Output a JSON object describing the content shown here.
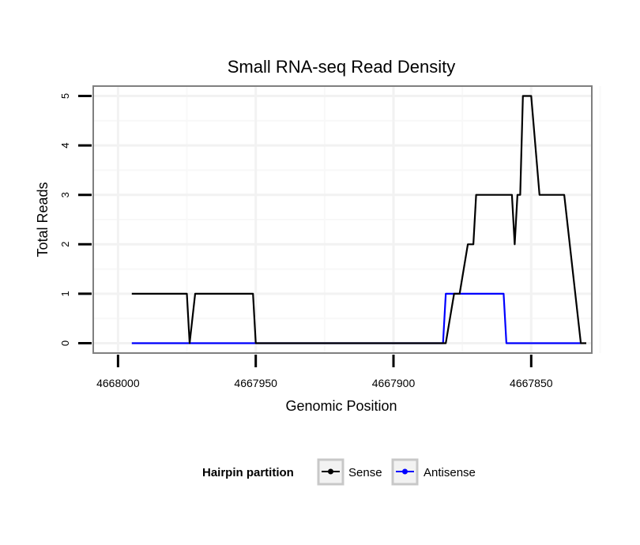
{
  "chart_data": {
    "type": "line",
    "title": "Small RNA-seq Read Density",
    "xlabel": "Genomic Position",
    "ylabel": "Total Reads",
    "x_reversed": true,
    "xlim": [
      4668009,
      4667828
    ],
    "ylim": [
      -0.2,
      5.2
    ],
    "x_ticks": [
      4668000,
      4667950,
      4667900,
      4667850
    ],
    "x_tick_labels": [
      "4668000",
      "4667950",
      "4667900",
      "4667850"
    ],
    "y_ticks": [
      0,
      1,
      2,
      3,
      4,
      5
    ],
    "y_tick_labels": [
      "0",
      "1",
      "2",
      "3",
      "4",
      "5"
    ],
    "grid": true,
    "legend_title": "Hairpin partition",
    "legend_position": "bottom",
    "series": [
      {
        "name": "Sense",
        "color": "#000000",
        "x": [
          4667995,
          4667975,
          4667974,
          4667972,
          4667951,
          4667950,
          4667881,
          4667878,
          4667876,
          4667873,
          4667871,
          4667870,
          4667868,
          4667857,
          4667856,
          4667855,
          4667854,
          4667853,
          4667850,
          4667847,
          4667843,
          4667841,
          4667838,
          4667832,
          4667830
        ],
        "values": [
          1,
          1,
          0,
          1,
          1,
          0,
          0,
          1,
          1,
          2,
          2,
          3,
          3,
          3,
          2,
          3,
          3,
          5,
          5,
          3,
          3,
          3,
          3,
          0,
          0
        ]
      },
      {
        "name": "Antisense",
        "color": "#0000ff",
        "x": [
          4667995,
          4667950,
          4667882,
          4667881,
          4667860,
          4667859,
          4667832
        ],
        "values": [
          0,
          0,
          0,
          1,
          1,
          0,
          0
        ]
      }
    ]
  }
}
